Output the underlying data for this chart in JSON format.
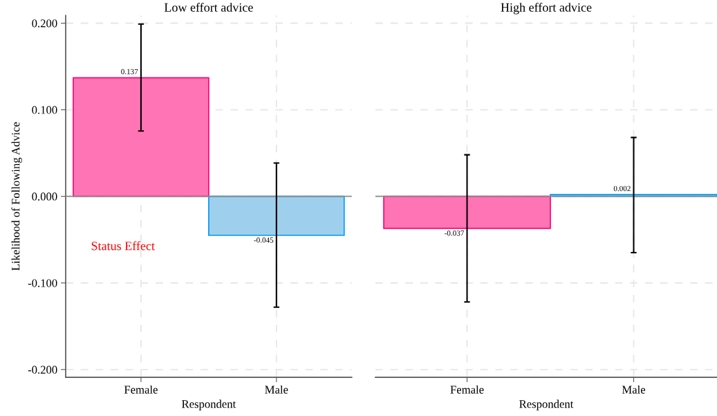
{
  "chart_data": [
    {
      "type": "bar",
      "title": "Low effort advice",
      "xlabel": "Respondent",
      "ylabel": "Likelihood of Following Advice",
      "categories": [
        "Female",
        "Male"
      ],
      "values": [
        0.137,
        -0.045
      ],
      "colors": [
        "#ff74b4",
        "#9ecfec"
      ],
      "errors": [
        [
          0.0755,
          0.199
        ],
        [
          -0.128,
          0.0385
        ]
      ],
      "ylim": [
        -0.209,
        0.209
      ],
      "yticks": [
        {
          "value": -0.2,
          "label": "-0.200"
        },
        {
          "value": -0.1,
          "label": "-0.100"
        },
        {
          "value": 0,
          "label": "0.000"
        },
        {
          "value": 0.1,
          "label": "0.100"
        },
        {
          "value": 0.2,
          "label": "0.200"
        }
      ],
      "ref_lines": [
        {
          "axis": "y",
          "value": 0,
          "color": "#8c8c8c"
        }
      ],
      "annotations": [
        "Status Effect"
      ],
      "data_labels": true,
      "grid": true
    },
    {
      "type": "bar",
      "title": "High effort advice",
      "xlabel": "Respondent",
      "categories": [
        "Female",
        "Male"
      ],
      "values": [
        -0.037,
        0.002
      ],
      "colors": [
        "#ff74b4",
        "#9ecfec"
      ],
      "errors": [
        [
          -0.122,
          0.048
        ],
        [
          -0.065,
          0.068
        ]
      ],
      "ylim": [
        -0.209,
        0.209
      ],
      "yticks": [
        {
          "value": -0.2,
          "label": null
        },
        {
          "value": -0.1,
          "label": null
        },
        {
          "value": 0,
          "label": null
        },
        {
          "value": 0.1,
          "label": null
        },
        {
          "value": 0.2,
          "label": null
        }
      ],
      "ref_lines": [
        {
          "axis": "y",
          "value": 0,
          "color": "#8c8c8c"
        }
      ],
      "tick_labels": "x",
      "data_labels": true,
      "grid": true
    }
  ]
}
